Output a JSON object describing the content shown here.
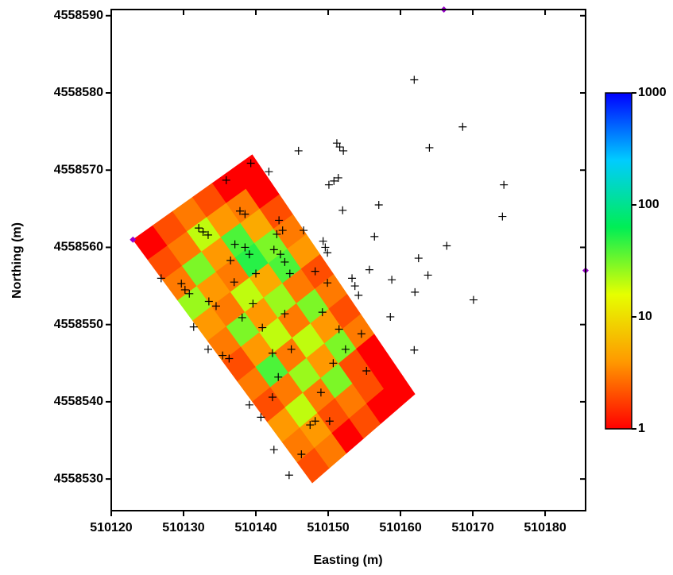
{
  "chart_data": {
    "type": "heatmap",
    "xlabel": "Easting (m)",
    "ylabel": "Northing (m)",
    "xlim": [
      510120,
      510185.6
    ],
    "ylim": [
      4558525.9,
      4558590.8
    ],
    "xticks": [
      510120,
      510130,
      510140,
      510150,
      510160,
      510170,
      510180
    ],
    "yticks": [
      4558530,
      4558540,
      4558550,
      4558560,
      4558570,
      4558580,
      4558590
    ],
    "log_color_scale": true,
    "clim": [
      1,
      1000
    ],
    "cticks": [
      1,
      10,
      100,
      1000
    ],
    "colormap": [
      "#ff0000",
      "#ff9900",
      "#e6ff00",
      "#00ee55",
      "#00ccff",
      "#0000ff"
    ],
    "field_corners": {
      "x": [
        510123,
        510139.5,
        510147.8,
        510162
      ],
      "y": [
        4558561,
        4558572,
        4558529.5,
        4558541
      ]
    },
    "field": [
      [
        1,
        2,
        3,
        2,
        1,
        1
      ],
      [
        2,
        3,
        20,
        4,
        3,
        1
      ],
      [
        3,
        30,
        4,
        40,
        5,
        2
      ],
      [
        25,
        4,
        3,
        50,
        30,
        3
      ],
      [
        4,
        3,
        20,
        5,
        40,
        4
      ],
      [
        3,
        30,
        4,
        25,
        3,
        2
      ],
      [
        2,
        4,
        20,
        3,
        30,
        3
      ],
      [
        3,
        40,
        3,
        20,
        4,
        2
      ],
      [
        2,
        3,
        25,
        4,
        30,
        3
      ],
      [
        4,
        20,
        3,
        30,
        2,
        1
      ],
      [
        3,
        4,
        2,
        3,
        2,
        1
      ],
      [
        2,
        3,
        1,
        2,
        1,
        1
      ]
    ],
    "points": {
      "color": "#000000",
      "x": [
        510161.9,
        510168.6,
        510164.0,
        510145.9,
        510151.2,
        510151.6,
        510152.1,
        510150.1,
        510150.8,
        510151.4,
        510174.3,
        510174.1,
        510157.0,
        510152.0,
        510156.4,
        510149.3,
        510149.6,
        510149.9,
        510166.4,
        510162.5,
        510163.8,
        510155.7,
        510158.8,
        510162.0,
        510170.1,
        510153.3,
        510153.7,
        510154.2,
        510158.6,
        510161.9,
        510149.2,
        510139.3,
        510141.8,
        510135.9,
        510132.1,
        510132.7,
        510133.4,
        510137.8,
        510138.5,
        510143.2,
        510143.7,
        510142.9,
        510146.6,
        510137.1,
        510138.5,
        510139.1,
        510142.5,
        510143.4,
        510144.0,
        510144.7,
        510136.5,
        510148.2,
        510149.9,
        510126.9,
        510129.7,
        510130.2,
        510130.8,
        510140.0,
        510137.0,
        510133.5,
        510134.5,
        510139.6,
        510144.0,
        510138.1,
        510131.4,
        510140.9,
        510151.5,
        510154.6,
        510133.4,
        510135.4,
        510136.3,
        510142.3,
        510144.9,
        510152.4,
        510150.7,
        510155.3,
        510143.1,
        510142.3,
        510139.1,
        510149.0,
        510140.7,
        510147.5,
        510148.2,
        510150.2,
        510142.5,
        510146.3,
        510144.6
      ],
      "y": [
        4558581.7,
        4558575.6,
        4558572.9,
        4558572.5,
        4558573.5,
        4558573.0,
        4558572.5,
        4558568.1,
        4558568.6,
        4558569.0,
        4558568.1,
        4558564.0,
        4558565.5,
        4558564.8,
        4558561.4,
        4558560.8,
        4558560.0,
        4558559.3,
        4558560.2,
        4558558.6,
        4558556.4,
        4558557.1,
        4558555.8,
        4558554.2,
        4558553.2,
        4558556.0,
        4558555.0,
        4558553.8,
        4558551.0,
        4558546.7,
        4558551.6,
        4558570.9,
        4558569.8,
        4558568.7,
        4558562.5,
        4558562.0,
        4558561.6,
        4558564.7,
        4558564.3,
        4558563.5,
        4558562.2,
        4558561.7,
        4558562.2,
        4558560.4,
        4558560.0,
        4558559.1,
        4558559.7,
        4558559.1,
        4558558.1,
        4558556.6,
        4558558.3,
        4558556.9,
        4558555.4,
        4558556.0,
        4558555.3,
        4558554.5,
        4558554.0,
        4558556.6,
        4558555.5,
        4558553.0,
        4558552.4,
        4558552.7,
        4558551.4,
        4558550.9,
        4558549.7,
        4558549.6,
        4558549.4,
        4558548.8,
        4558546.8,
        4558546.0,
        4558545.6,
        4558546.3,
        4558546.8,
        4558546.8,
        4558545.0,
        4558544.0,
        4558543.2,
        4558540.6,
        4558539.6,
        4558541.2,
        4558538.0,
        4558537.0,
        4558537.5,
        4558537.5,
        4558533.8,
        4558533.2,
        4558530.5
      ]
    },
    "markers": {
      "color": "#9900cc",
      "x": [
        510123,
        510166,
        510185.6
      ],
      "y": [
        4558561,
        4558590.8,
        4558557
      ]
    }
  }
}
